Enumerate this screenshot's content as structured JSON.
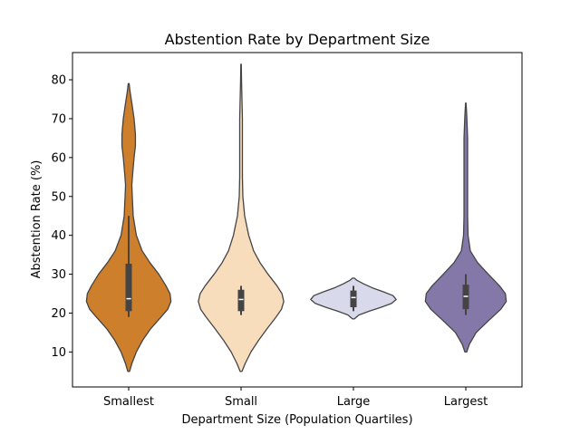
{
  "chart_data": {
    "type": "violin",
    "title": "Abstention Rate by Department Size",
    "xlabel": "Department Size (Population Quartiles)",
    "ylabel": "Abstention Rate (%)",
    "ylim": [
      1,
      87
    ],
    "yticks": [
      10,
      20,
      30,
      40,
      50,
      60,
      70,
      80
    ],
    "grid": false,
    "categories": [
      "Smallest",
      "Small",
      "Large",
      "Largest"
    ],
    "colors": [
      "#cd7f2b",
      "#f8ddbd",
      "#d8d9eb",
      "#8478a9"
    ],
    "violins": [
      {
        "category": "Smallest",
        "color": "#cd7f2b",
        "min": 5,
        "max": 79,
        "q1": 20.5,
        "median": 23.7,
        "q3": 32.7,
        "whisker_low": 19,
        "whisker_high": 45,
        "profile": [
          [
            5,
            0.02
          ],
          [
            7,
            0.07
          ],
          [
            10,
            0.17
          ],
          [
            13,
            0.31
          ],
          [
            16,
            0.49
          ],
          [
            19,
            0.72
          ],
          [
            21,
            0.87
          ],
          [
            23,
            0.94
          ],
          [
            25,
            0.92
          ],
          [
            27,
            0.83
          ],
          [
            30,
            0.67
          ],
          [
            33,
            0.47
          ],
          [
            36,
            0.3
          ],
          [
            40,
            0.17
          ],
          [
            45,
            0.1
          ],
          [
            50,
            0.08
          ],
          [
            53,
            0.07
          ],
          [
            56,
            0.09
          ],
          [
            60,
            0.12
          ],
          [
            63,
            0.15
          ],
          [
            66,
            0.15
          ],
          [
            70,
            0.12
          ],
          [
            74,
            0.07
          ],
          [
            77,
            0.03
          ],
          [
            79,
            0.01
          ]
        ]
      },
      {
        "category": "Small",
        "color": "#f8ddbd",
        "min": 5,
        "max": 84,
        "q1": 20.5,
        "median": 23.5,
        "q3": 26.0,
        "whisker_low": 19.5,
        "whisker_high": 27,
        "profile": [
          [
            5,
            0.02
          ],
          [
            7,
            0.09
          ],
          [
            10,
            0.22
          ],
          [
            13,
            0.39
          ],
          [
            16,
            0.58
          ],
          [
            19,
            0.78
          ],
          [
            21,
            0.9
          ],
          [
            23,
            0.95
          ],
          [
            25,
            0.91
          ],
          [
            27,
            0.8
          ],
          [
            30,
            0.6
          ],
          [
            33,
            0.42
          ],
          [
            36,
            0.28
          ],
          [
            40,
            0.17
          ],
          [
            45,
            0.08
          ],
          [
            50,
            0.04
          ],
          [
            55,
            0.03
          ],
          [
            60,
            0.03
          ],
          [
            65,
            0.03
          ],
          [
            70,
            0.03
          ],
          [
            75,
            0.02
          ],
          [
            80,
            0.01
          ],
          [
            84,
            0.005
          ]
        ]
      },
      {
        "category": "Large",
        "color": "#d8d9eb",
        "min": 18.5,
        "max": 29,
        "q1": 21.5,
        "median": 24.0,
        "q3": 25.8,
        "whisker_low": 20.5,
        "whisker_high": 27,
        "profile": [
          [
            18.5,
            0.02
          ],
          [
            19.5,
            0.12
          ],
          [
            20.5,
            0.35
          ],
          [
            21.5,
            0.62
          ],
          [
            22.5,
            0.85
          ],
          [
            23.5,
            0.95
          ],
          [
            24.5,
            0.88
          ],
          [
            25.5,
            0.66
          ],
          [
            26.5,
            0.42
          ],
          [
            27.5,
            0.23
          ],
          [
            28.5,
            0.07
          ],
          [
            29,
            0.02
          ]
        ]
      },
      {
        "category": "Largest",
        "color": "#8478a9",
        "min": 10,
        "max": 74,
        "q1": 21.0,
        "median": 24.3,
        "q3": 27.3,
        "whisker_low": 19.5,
        "whisker_high": 30,
        "profile": [
          [
            10,
            0.02
          ],
          [
            12,
            0.08
          ],
          [
            15,
            0.23
          ],
          [
            18,
            0.5
          ],
          [
            21,
            0.78
          ],
          [
            23,
            0.9
          ],
          [
            25,
            0.88
          ],
          [
            27,
            0.75
          ],
          [
            30,
            0.5
          ],
          [
            33,
            0.26
          ],
          [
            36,
            0.1
          ],
          [
            40,
            0.05
          ],
          [
            45,
            0.04
          ],
          [
            50,
            0.04
          ],
          [
            55,
            0.04
          ],
          [
            60,
            0.04
          ],
          [
            65,
            0.04
          ],
          [
            68,
            0.03
          ],
          [
            71,
            0.02
          ],
          [
            74,
            0.005
          ]
        ]
      }
    ]
  }
}
